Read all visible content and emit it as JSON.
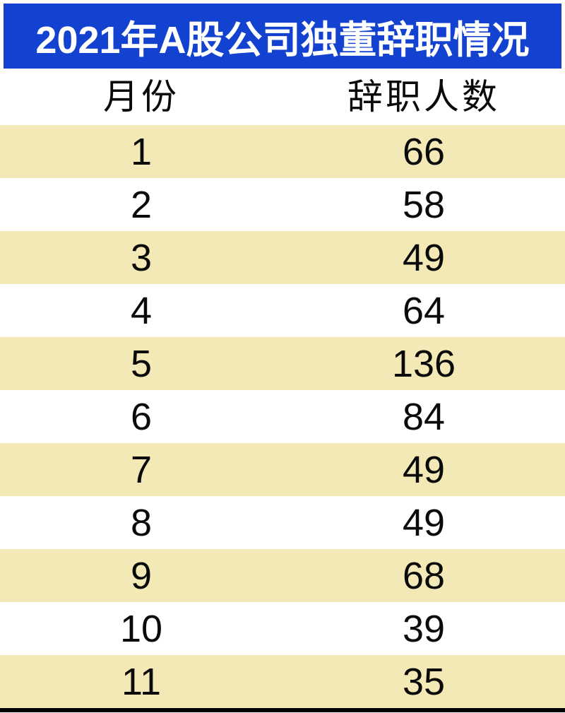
{
  "title": "2021年A股公司独董辞职情况",
  "colors": {
    "header_bg": "#1442d0",
    "header_text": "#ffffff",
    "row_alt_bg": "#f3e9b6",
    "row_bg": "#ffffff",
    "cell_text": "#0a0a0a",
    "bottom_line": "#000000"
  },
  "chart_data": {
    "type": "table",
    "title": "2021年A股公司独董辞职情况",
    "columns": [
      "月份",
      "辞职人数"
    ],
    "rows": [
      [
        "1",
        "66"
      ],
      [
        "2",
        "58"
      ],
      [
        "3",
        "49"
      ],
      [
        "4",
        "64"
      ],
      [
        "5",
        "136"
      ],
      [
        "6",
        "84"
      ],
      [
        "7",
        "49"
      ],
      [
        "8",
        "49"
      ],
      [
        "9",
        "68"
      ],
      [
        "10",
        "39"
      ],
      [
        "11",
        "35"
      ]
    ],
    "layout": {
      "row_striping": "odd-rows-cream",
      "first_data_row_background": "cream",
      "bottom_rule": true
    }
  }
}
